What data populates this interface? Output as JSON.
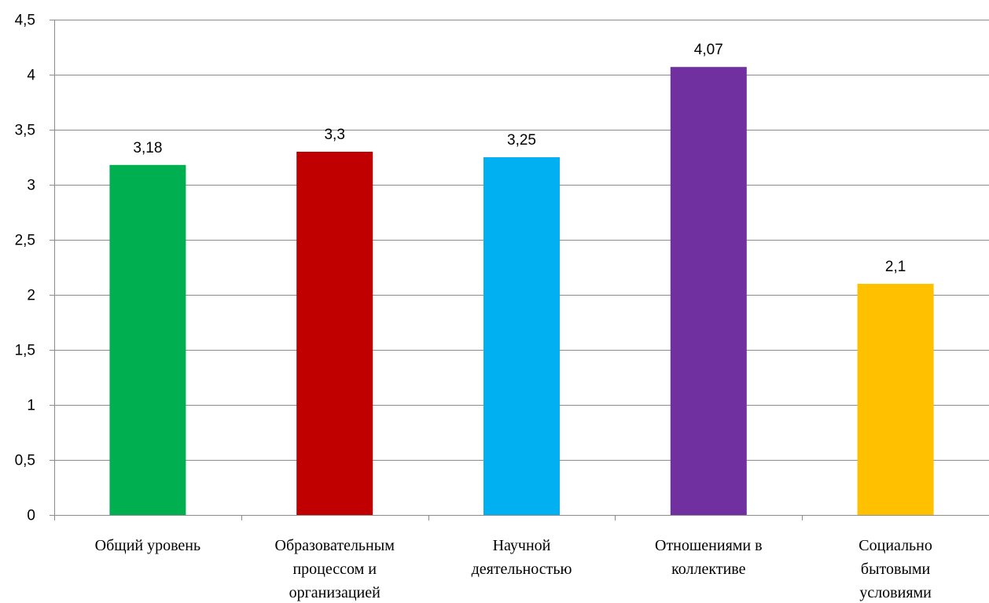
{
  "chart_data": {
    "type": "bar",
    "title": "",
    "xlabel": "",
    "ylabel": "",
    "ylim": [
      0,
      4.5
    ],
    "y_ticks": [
      0,
      0.5,
      1,
      1.5,
      2,
      2.5,
      3,
      3.5,
      4,
      4.5
    ],
    "y_tick_labels": [
      "0",
      "0,5",
      "1",
      "1,5",
      "2",
      "2,5",
      "3",
      "3,5",
      "4",
      "4,5"
    ],
    "grid": true,
    "legend": "none",
    "categories": [
      [
        "Общий уровень"
      ],
      [
        "Образовательным",
        "процессом и",
        "организацией"
      ],
      [
        "Научной",
        "деятельностью"
      ],
      [
        "Отношениями в",
        "коллективе"
      ],
      [
        "Социально",
        "бытовыми",
        "условиями"
      ]
    ],
    "values": [
      3.18,
      3.3,
      3.25,
      4.07,
      2.1
    ],
    "value_labels": [
      "3,18",
      "3,3",
      "3,25",
      "4,07",
      "2,1"
    ],
    "colors": [
      "#00b050",
      "#c00000",
      "#00b0f0",
      "#7030a0",
      "#ffc000"
    ]
  }
}
